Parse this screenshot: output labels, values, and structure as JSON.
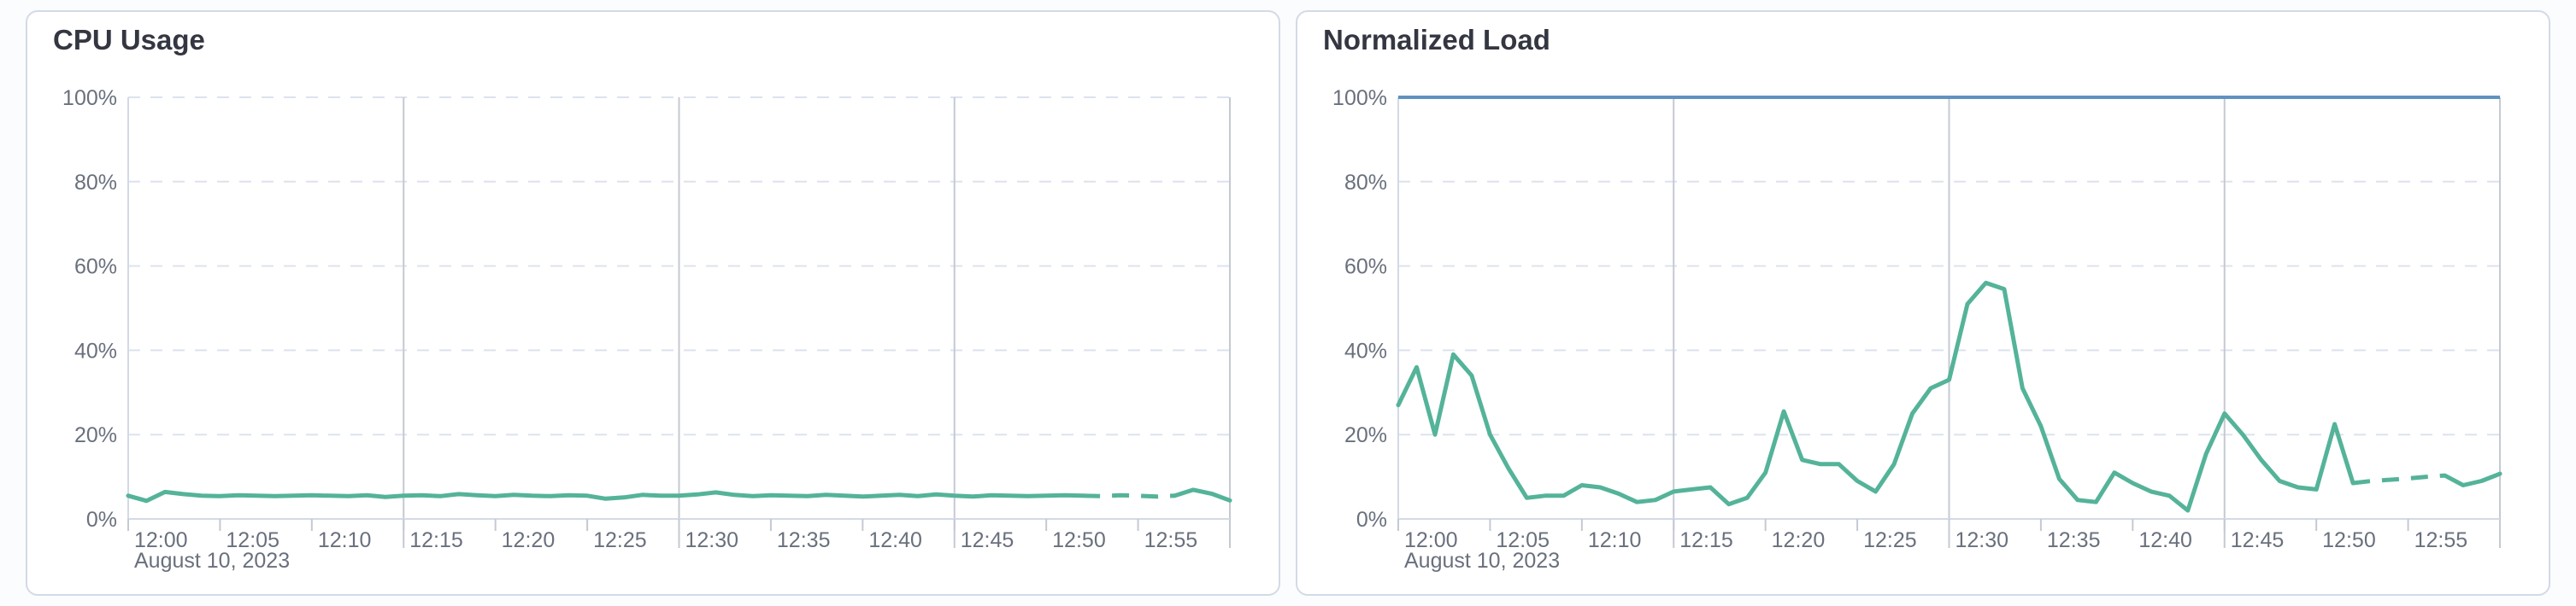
{
  "page": {
    "background_color": "#fbfcfe",
    "card_background": "#ffffff",
    "card_border_color": "#d3dae6"
  },
  "colors": {
    "title_text": "#343741",
    "axis_label_text": "#69707d",
    "horizontal_gridline": "#dce3ee",
    "vertical_gridline": "#c5c9d2",
    "axis_line": "#d3dae6",
    "series_green": "#54b399",
    "limit_blue": "#6092c0"
  },
  "chart_data": [
    {
      "id": "cpu-usage",
      "type": "line",
      "title": "CPU Usage",
      "xlabel": "",
      "ylabel": "",
      "grid": true,
      "legend": false,
      "x_axis": {
        "date_label": "August 10, 2023",
        "start_time": "12:00",
        "end_time": "13:00",
        "total_minutes": 60,
        "interval_minutes": 1,
        "tick_step_minutes": 5,
        "tick_labels": [
          "12:00",
          "12:05",
          "12:10",
          "12:15",
          "12:20",
          "12:25",
          "12:30",
          "12:35",
          "12:40",
          "12:45",
          "12:50",
          "12:55"
        ],
        "major_gridline_minutes": [
          15,
          30,
          45,
          60
        ]
      },
      "y_axis": {
        "unit": "%",
        "ylim": [
          0,
          100
        ],
        "tick_values": [
          0,
          20,
          40,
          60,
          80,
          100
        ],
        "tick_labels": [
          "0%",
          "20%",
          "40%",
          "60%",
          "80%",
          "100%"
        ]
      },
      "threshold_line": null,
      "series": [
        {
          "name": "CPU Usage",
          "color": "#54b399",
          "style_note": "solid line; dashed (projected) segment between 12:52 and 12:57",
          "dash_from_index": 52,
          "dash_to_index": 57,
          "values": [
            5.5,
            4.3,
            6.4,
            5.9,
            5.5,
            5.4,
            5.6,
            5.5,
            5.4,
            5.5,
            5.6,
            5.5,
            5.4,
            5.6,
            5.2,
            5.5,
            5.6,
            5.4,
            5.9,
            5.6,
            5.4,
            5.7,
            5.5,
            5.4,
            5.6,
            5.5,
            4.8,
            5.1,
            5.7,
            5.5,
            5.5,
            5.8,
            6.3,
            5.7,
            5.4,
            5.6,
            5.5,
            5.4,
            5.7,
            5.5,
            5.3,
            5.5,
            5.7,
            5.4,
            5.8,
            5.5,
            5.3,
            5.6,
            5.5,
            5.4,
            5.5,
            5.6,
            5.5,
            5.4,
            5.6,
            5.5,
            5.3,
            5.5,
            6.9,
            6.0,
            4.4
          ]
        }
      ]
    },
    {
      "id": "normalized-load",
      "type": "line",
      "title": "Normalized Load",
      "xlabel": "",
      "ylabel": "",
      "grid": true,
      "legend": false,
      "x_axis": {
        "date_label": "August 10, 2023",
        "start_time": "12:00",
        "end_time": "13:00",
        "total_minutes": 60,
        "interval_minutes": 1,
        "tick_step_minutes": 5,
        "tick_labels": [
          "12:00",
          "12:05",
          "12:10",
          "12:15",
          "12:20",
          "12:25",
          "12:30",
          "12:35",
          "12:40",
          "12:45",
          "12:50",
          "12:55"
        ],
        "major_gridline_minutes": [
          15,
          30,
          45,
          60
        ]
      },
      "y_axis": {
        "unit": "%",
        "ylim": [
          0,
          100
        ],
        "tick_values": [
          0,
          20,
          40,
          60,
          80,
          100
        ],
        "tick_labels": [
          "0%",
          "20%",
          "40%",
          "60%",
          "80%",
          "100%"
        ]
      },
      "threshold_line": {
        "name": "100% limit",
        "value": 100,
        "color": "#6092c0"
      },
      "series": [
        {
          "name": "Normalized Load",
          "color": "#54b399",
          "style_note": "solid line; dashed (projected) segment between 12:52 and 12:57",
          "dash_from_index": 52,
          "dash_to_index": 57,
          "values": [
            27,
            36,
            20,
            39,
            34,
            20,
            12,
            5,
            5.5,
            5.5,
            8,
            7.5,
            6,
            4,
            4.5,
            6.5,
            7,
            7.5,
            3.5,
            5,
            11,
            25.5,
            14,
            13,
            13,
            9,
            6.5,
            13,
            25,
            31,
            33,
            51,
            56,
            54.5,
            31,
            22,
            9.5,
            4.5,
            4,
            11,
            8.5,
            6.5,
            5.5,
            2,
            15.5,
            25,
            20,
            14,
            9,
            7.5,
            7,
            22.5,
            8.5,
            9,
            9.3,
            9.6,
            10,
            10.3,
            8,
            9,
            10.7
          ]
        }
      ]
    }
  ]
}
